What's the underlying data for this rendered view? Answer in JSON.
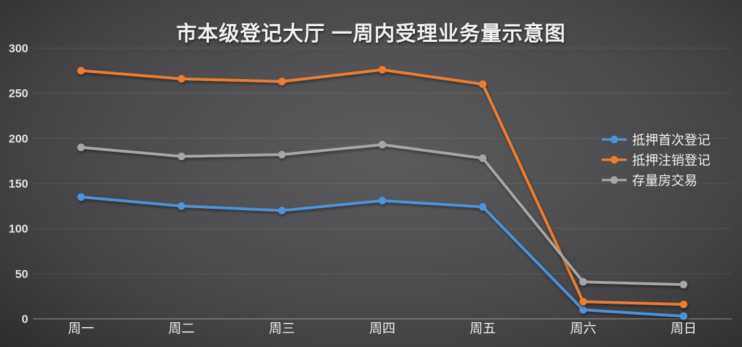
{
  "chart_data": {
    "type": "line",
    "title": "市本级登记大厅 一周内受理业务量示意图",
    "xlabel": "",
    "ylabel": "",
    "categories": [
      "周一",
      "周二",
      "周三",
      "周四",
      "周五",
      "周六",
      "周日"
    ],
    "series": [
      {
        "name": "抵押首次登记",
        "color": "#4E93D9",
        "values": [
          135,
          125,
          120,
          131,
          124,
          10,
          3
        ]
      },
      {
        "name": "抵押注销登记",
        "color": "#ED7D31",
        "values": [
          275,
          266,
          263,
          276,
          260,
          19,
          16
        ]
      },
      {
        "name": "存量房交易",
        "color": "#A6A6A6",
        "values": [
          190,
          180,
          182,
          193,
          178,
          41,
          38
        ]
      }
    ],
    "ylim": [
      0,
      300
    ],
    "yticks": [
      0,
      50,
      100,
      150,
      200,
      250,
      300
    ],
    "grid": true,
    "legend_position": "right",
    "colors": {
      "background_center": "#5b5b5d",
      "background_edge": "#252527",
      "gridline": "rgba(255,255,255,0.09)",
      "axis_line": "rgba(255,255,255,0.32)",
      "tick_text": "#e3e3e3",
      "title_text": "#f2f2f2"
    }
  }
}
